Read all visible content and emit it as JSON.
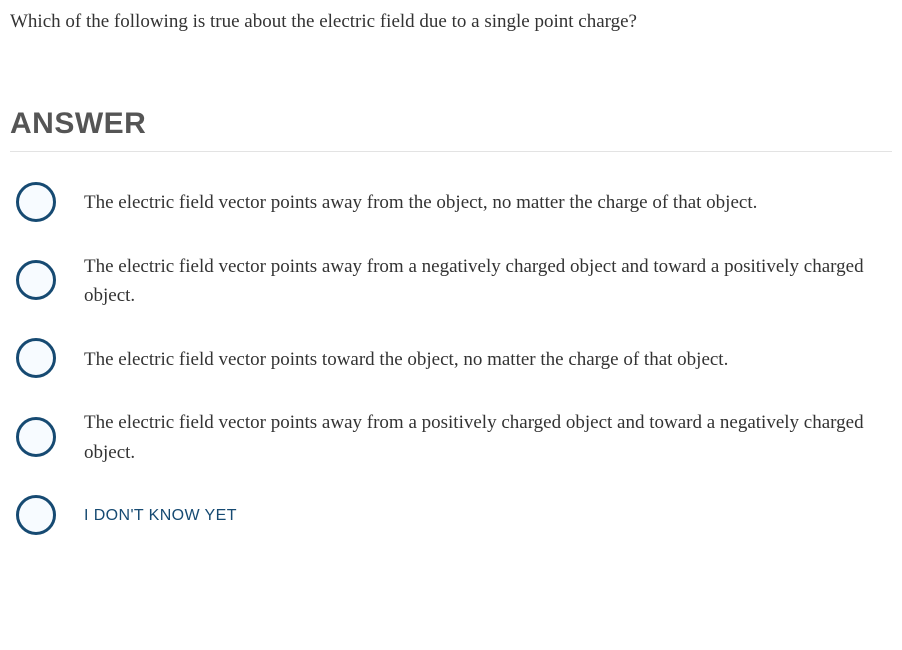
{
  "question": "Which of the following is true about the electric field due to a single point charge?",
  "answer_heading": "ANSWER",
  "options": [
    {
      "text": "The electric field vector points away from the object, no matter the charge of that object.",
      "special": false
    },
    {
      "text": "The electric field vector points away from a negatively charged object and toward a positively charged object.",
      "special": false
    },
    {
      "text": "The electric field vector points toward the object, no matter the charge of that object.",
      "special": false
    },
    {
      "text": "The electric field vector points away from a positively charged object and toward a negatively charged object.",
      "special": false
    },
    {
      "text": "I DON'T KNOW YET",
      "special": true
    }
  ],
  "colors": {
    "radio_border": "#164a72",
    "radio_fill": "#f7fbff",
    "text": "#333333",
    "heading": "#555555",
    "divider": "#e3e3e3",
    "idk_text": "#164a72",
    "background": "#ffffff"
  }
}
